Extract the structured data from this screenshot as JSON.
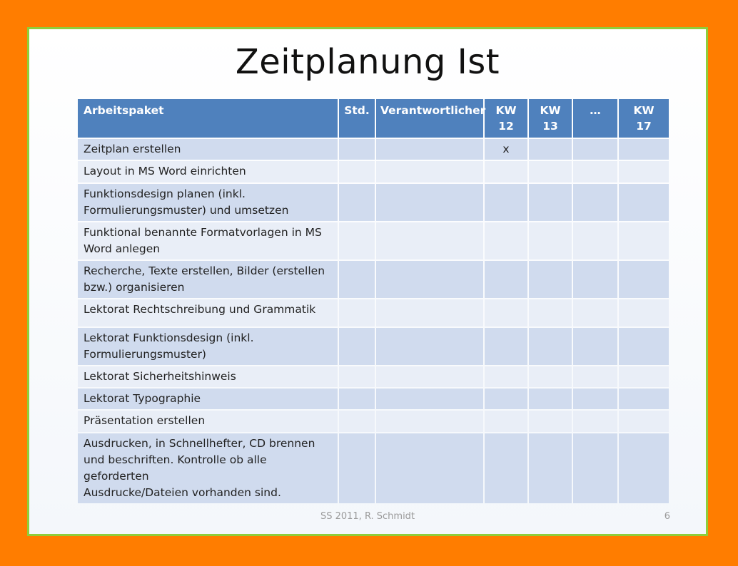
{
  "title": "Zeitplanung Ist",
  "table": {
    "headers": [
      {
        "line1": "Arbeitspaket",
        "line2": ""
      },
      {
        "line1": "Std.",
        "line2": ""
      },
      {
        "line1": "Verantwortlicher",
        "line2": ""
      },
      {
        "line1": "KW",
        "line2": "12"
      },
      {
        "line1": "KW",
        "line2": "13"
      },
      {
        "line1": "…",
        "line2": ""
      },
      {
        "line1": "KW",
        "line2": "17"
      }
    ],
    "rows": [
      {
        "task": [
          "Zeitplan erstellen"
        ],
        "cells": [
          "",
          "",
          "x",
          "",
          "",
          ""
        ]
      },
      {
        "task": [
          "Layout in MS Word einrichten"
        ],
        "cells": [
          "",
          "",
          "",
          "",
          "",
          ""
        ]
      },
      {
        "task": [
          "Funktionsdesign planen (inkl.",
          "Formulierungsmuster) und umsetzen"
        ],
        "cells": [
          "",
          "",
          "",
          "",
          "",
          ""
        ]
      },
      {
        "task": [
          "Funktional benannte Formatvorlagen in MS",
          "Word anlegen"
        ],
        "cells": [
          "",
          "",
          "",
          "",
          "",
          ""
        ]
      },
      {
        "task": [
          "Recherche, Texte erstellen, Bilder (erstellen",
          "bzw.) organisieren"
        ],
        "cells": [
          "",
          "",
          "",
          "",
          "",
          ""
        ]
      },
      {
        "task": [
          "Lektorat Rechtschreibung und Grammatik"
        ],
        "cells": [
          "",
          "",
          "",
          "",
          "",
          ""
        ]
      },
      {
        "task": [
          "Lektorat Funktionsdesign (inkl.",
          "Formulierungsmuster)"
        ],
        "cells": [
          "",
          "",
          "",
          "",
          "",
          ""
        ]
      },
      {
        "task": [
          "Lektorat Sicherheitshinweis"
        ],
        "cells": [
          "",
          "",
          "",
          "",
          "",
          ""
        ]
      },
      {
        "task": [
          "Lektorat Typographie"
        ],
        "cells": [
          "",
          "",
          "",
          "",
          "",
          ""
        ]
      },
      {
        "task": [
          "Präsentation erstellen"
        ],
        "cells": [
          "",
          "",
          "",
          "",
          "",
          ""
        ]
      },
      {
        "task": [
          "Ausdrucken, in Schnellhefter, CD brennen",
          "und beschriften. Kontrolle ob alle geforderten",
          "Ausdrucke/Dateien vorhanden sind."
        ],
        "cells": [
          "",
          "",
          "",
          "",
          "",
          ""
        ]
      }
    ]
  },
  "footer": {
    "text": "SS 2011, R. Schmidt",
    "page": "6"
  },
  "colors": {
    "frame": "#ff7d00",
    "slide_border": "#8fce3a",
    "header_bg": "#4f81bd",
    "row_dark": "#d0dbee",
    "row_light": "#e9eef7"
  }
}
